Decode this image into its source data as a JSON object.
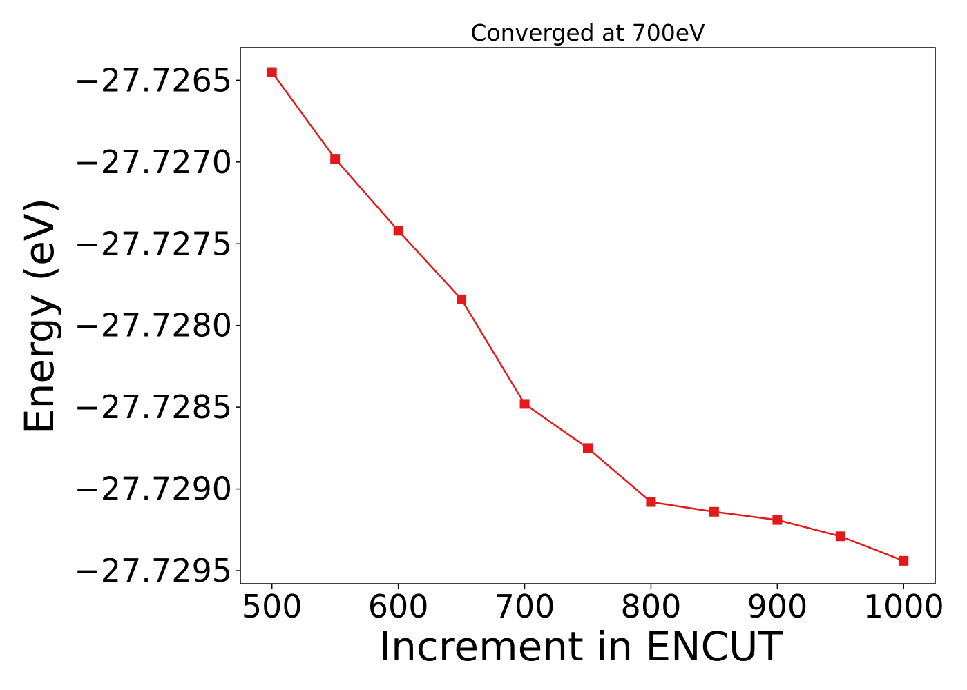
{
  "chart_data": {
    "type": "line",
    "title": "Converged at 700eV",
    "xlabel": "Increment in ENCUT",
    "ylabel": "Energy (eV)",
    "x": [
      500,
      550,
      600,
      650,
      700,
      750,
      800,
      850,
      900,
      950,
      1000
    ],
    "series": [
      {
        "values": [
          -27.72645,
          -27.72698,
          -27.72742,
          -27.72784,
          -27.72848,
          -27.72875,
          -27.72908,
          -27.72914,
          -27.72919,
          -27.72929,
          -27.72944
        ],
        "color": "#e31a1c",
        "marker": "square"
      }
    ],
    "xticks": [
      500,
      600,
      700,
      800,
      900,
      1000
    ],
    "xtick_labels": [
      "500",
      "600",
      "700",
      "800",
      "900",
      "1000"
    ],
    "yticks": [
      -27.7265,
      -27.727,
      -27.7275,
      -27.728,
      -27.7285,
      -27.729,
      -27.7295
    ],
    "ytick_labels": [
      "−27.7265",
      "−27.7270",
      "−27.7275",
      "−27.7280",
      "−27.7285",
      "−27.7290",
      "−27.7295"
    ],
    "xlim": [
      475,
      1025
    ],
    "ylim": [
      -27.72958,
      -27.7263
    ],
    "grid": false,
    "legend": "none"
  }
}
